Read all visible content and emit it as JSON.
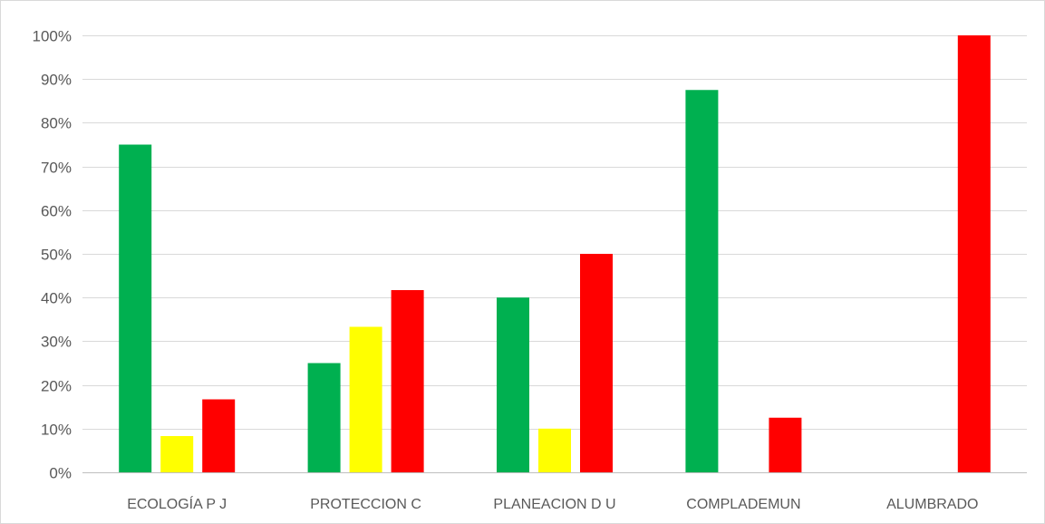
{
  "chart_data": {
    "type": "bar",
    "title": "",
    "xlabel": "",
    "ylabel": "",
    "categories": [
      "ECOLOGÍA P J",
      "PROTECCION C",
      "PLANEACION D U",
      "COMPLADEMUN",
      "ALUMBRADO"
    ],
    "series": [
      {
        "color": "#00b050",
        "values": [
          75,
          25,
          40,
          87.5,
          0
        ]
      },
      {
        "color": "#ffff00",
        "values": [
          8.3,
          33.3,
          10,
          0,
          0
        ]
      },
      {
        "color": "#ff0000",
        "values": [
          16.7,
          41.7,
          50,
          12.5,
          100
        ]
      }
    ],
    "ylim": [
      0,
      100
    ],
    "yticks": [
      "0%",
      "10%",
      "20%",
      "30%",
      "40%",
      "50%",
      "60%",
      "70%",
      "80%",
      "90%",
      "100%"
    ],
    "grid": true,
    "legend": "none"
  }
}
